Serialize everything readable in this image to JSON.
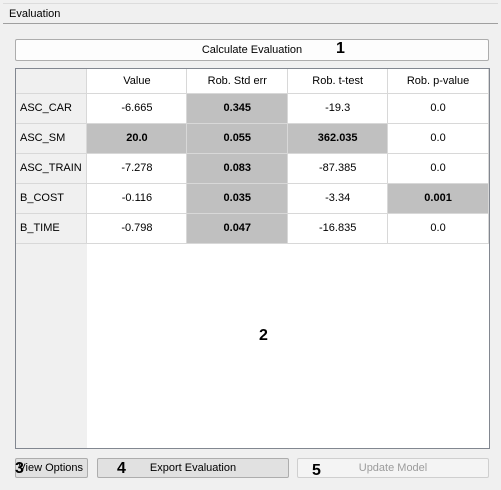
{
  "window": {
    "title": "Evaluation"
  },
  "toolbar": {
    "calculate_label": "Calculate Evaluation"
  },
  "annotations": {
    "n1": "1",
    "n2": "2",
    "n3": "3",
    "n4": "4",
    "n5": "5"
  },
  "table": {
    "columns": [
      "Value",
      "Rob. Std err",
      "Rob. t-test",
      "Rob. p-value"
    ],
    "rows": [
      {
        "label": "ASC_CAR",
        "cells": [
          "-6.665",
          "0.345",
          "-19.3",
          "0.0"
        ]
      },
      {
        "label": "ASC_SM",
        "cells": [
          "20.0",
          "0.055",
          "362.035",
          "0.0"
        ]
      },
      {
        "label": "ASC_TRAIN",
        "cells": [
          "-7.278",
          "0.083",
          "-87.385",
          "0.0"
        ]
      },
      {
        "label": "B_COST",
        "cells": [
          "-0.116",
          "0.035",
          "-3.34",
          "0.001"
        ]
      },
      {
        "label": "B_TIME",
        "cells": [
          "-0.798",
          "0.047",
          "-16.835",
          "0.0"
        ]
      }
    ],
    "highlight_color": "#c0c0c0"
  },
  "buttons": {
    "view_options": "View Options",
    "export": "Export Evaluation",
    "update": "Update Model"
  }
}
